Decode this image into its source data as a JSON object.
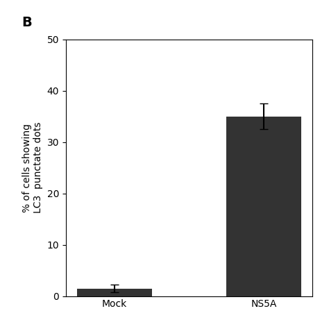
{
  "chart_data": {
    "type": "bar",
    "categories": [
      "Mock",
      "NS5A"
    ],
    "values": [
      1.5,
      35
    ],
    "errors": [
      0.8,
      2.5
    ],
    "color": "#333333",
    "ylabel": "% of cells showing\nLC3  punctate dots",
    "ylim": [
      0,
      50
    ],
    "yticks": [
      0,
      10,
      20,
      30,
      40,
      50
    ],
    "grid": false,
    "annotations": [
      "B"
    ]
  }
}
